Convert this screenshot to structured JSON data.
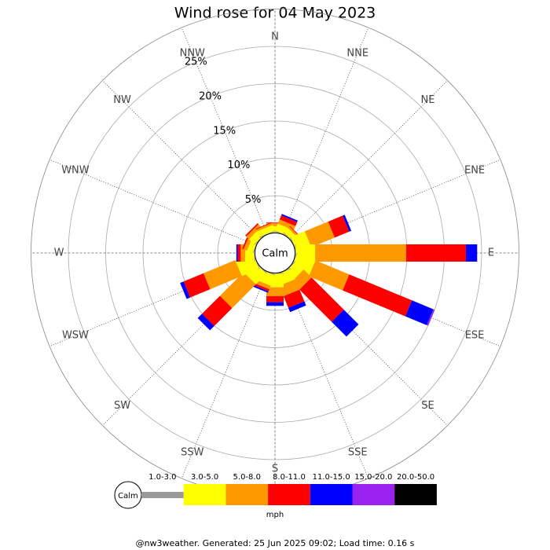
{
  "chart_data": {
    "type": "windrose",
    "title": "Wind rose for 04 May 2023",
    "directions": [
      "N",
      "NNE",
      "NE",
      "ENE",
      "E",
      "ESE",
      "SE",
      "SSE",
      "S",
      "SSW",
      "SW",
      "WSW",
      "W",
      "WNW",
      "NW",
      "NNW"
    ],
    "calm_label": "Calm",
    "units": "mph",
    "rlim": [
      0,
      30
    ],
    "rticks": [
      {
        "value": 5,
        "label": "5%"
      },
      {
        "value": 10,
        "label": "10%"
      },
      {
        "value": 15,
        "label": "15%"
      },
      {
        "value": 20,
        "label": "20%"
      },
      {
        "value": 25,
        "label": "25%"
      }
    ],
    "series": [
      {
        "name": "1.0-3.0",
        "color": "#999999",
        "values": [
          0.1,
          0.1,
          0.1,
          0.1,
          0.1,
          0.1,
          0.1,
          0.1,
          0.1,
          0.1,
          0.1,
          0.1,
          0.1,
          0.1,
          0.1,
          0.1
        ]
      },
      {
        "name": "3.0-5.0",
        "color": "#ffff00",
        "values": [
          0.8,
          1.0,
          0.8,
          2.0,
          2.6,
          2.6,
          1.5,
          1.5,
          1.8,
          1.5,
          2.0,
          2.5,
          1.2,
          0.8,
          1.0,
          0.8
        ]
      },
      {
        "name": "5.0-8.0",
        "color": "#ff9900",
        "values": [
          0.4,
          0.6,
          0.3,
          3.4,
          12.2,
          4.9,
          1.5,
          1.5,
          1.2,
          0.5,
          4.5,
          4.6,
          0.6,
          0.5,
          0.5,
          0.3
        ]
      },
      {
        "name": "8.0-11.0",
        "color": "#ff0000",
        "values": [
          0.1,
          0.6,
          0.1,
          2.1,
          8.0,
          9.1,
          6.1,
          1.7,
          0.8,
          0.3,
          3.4,
          2.9,
          0.4,
          0.2,
          0.2,
          0.1
        ]
      },
      {
        "name": "11.0-15.0",
        "color": "#0000ff",
        "values": [
          0,
          0.2,
          0,
          0.3,
          1.5,
          3.1,
          2.8,
          0.6,
          0.5,
          0.2,
          0.8,
          0.5,
          0.2,
          0,
          0,
          0
        ]
      },
      {
        "name": "15.0-20.0",
        "color": "#9922ee",
        "values": [
          0,
          0,
          0,
          0,
          0,
          0.2,
          0,
          0,
          0,
          0,
          0,
          0,
          0,
          0,
          0,
          0
        ]
      },
      {
        "name": "20.0-50.0",
        "color": "#000000",
        "values": [
          0,
          0,
          0,
          0,
          0,
          0,
          0,
          0,
          0,
          0,
          0,
          0,
          0,
          0,
          0,
          0
        ]
      }
    ],
    "footer": "@nw3weather. Generated: 25 Jun 2025 09:02; Load time: 0.16 s"
  }
}
